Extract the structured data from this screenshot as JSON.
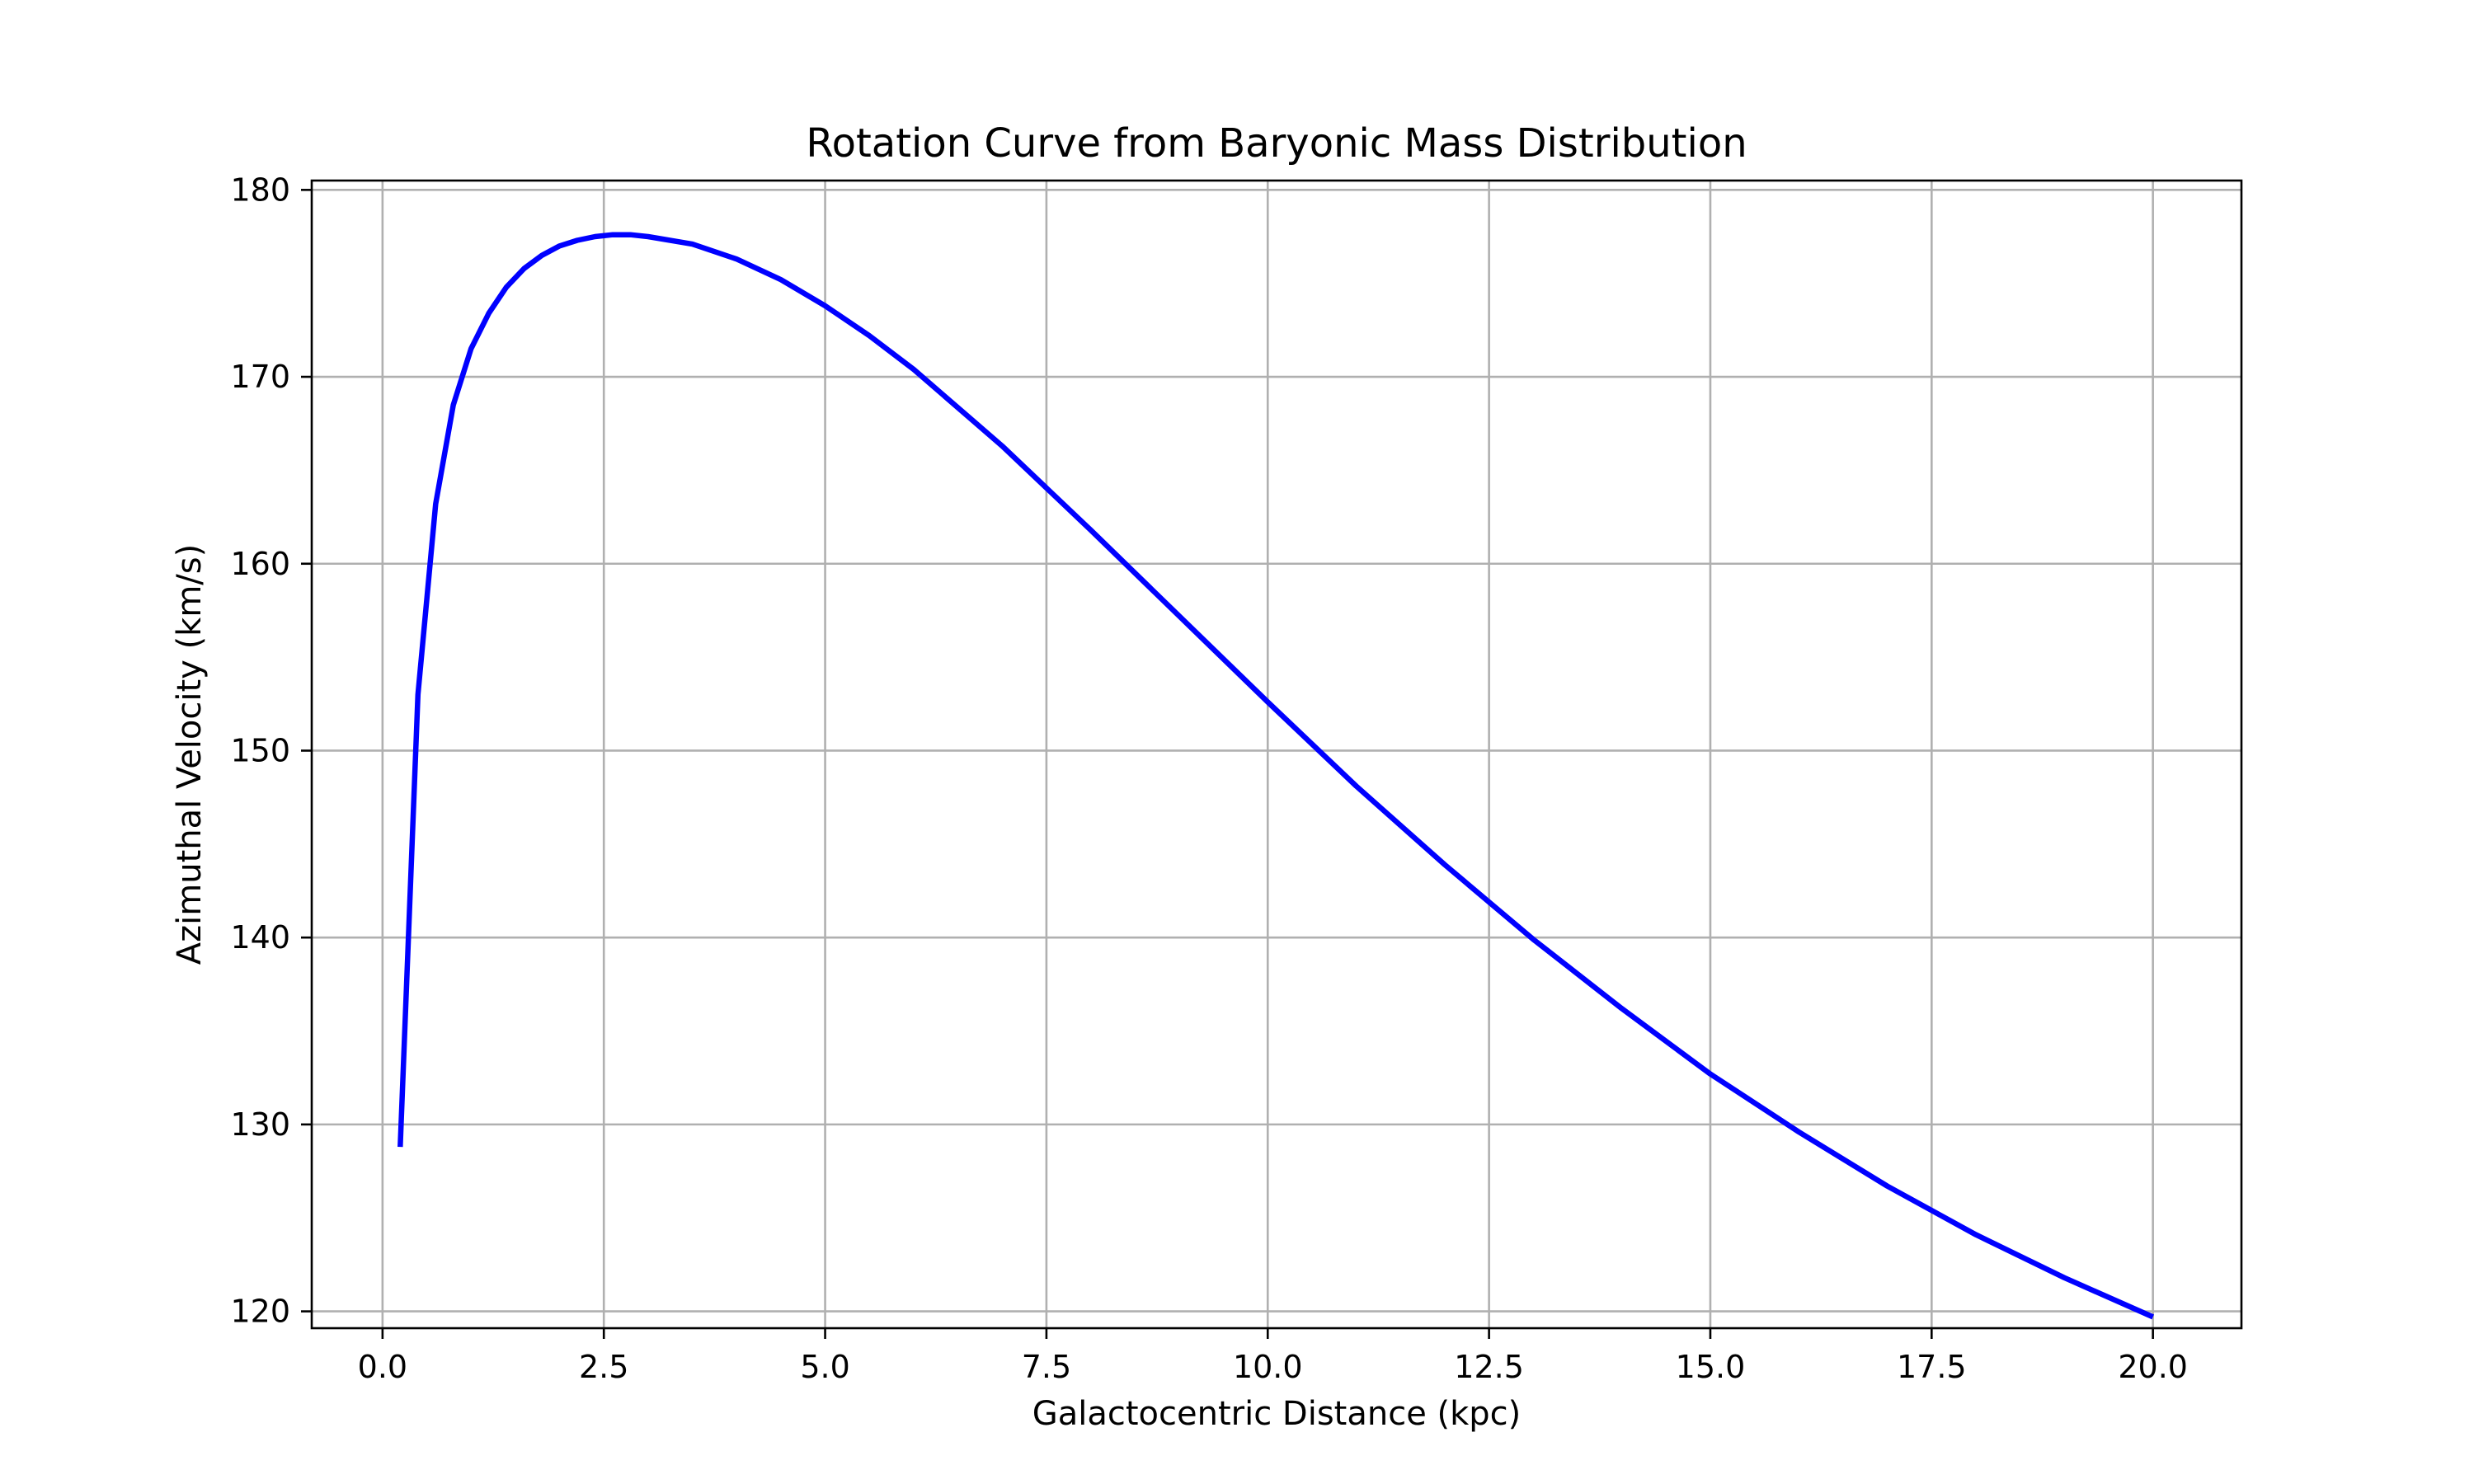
{
  "chart_data": {
    "type": "line",
    "title": "Rotation Curve from Baryonic Mass Distribution",
    "xlabel": "Galactocentric Distance (kpc)",
    "ylabel": "Azimuthal Velocity (km/s)",
    "xlim": [
      -0.8,
      21.0
    ],
    "ylim": [
      119.1,
      180.5
    ],
    "xticks": [
      0.0,
      2.5,
      5.0,
      7.5,
      10.0,
      12.5,
      15.0,
      17.5,
      20.0
    ],
    "xtick_labels": [
      "0.0",
      "2.5",
      "5.0",
      "7.5",
      "10.0",
      "12.5",
      "15.0",
      "17.5",
      "20.0"
    ],
    "yticks": [
      120,
      130,
      140,
      150,
      160,
      170,
      180
    ],
    "ytick_labels": [
      "120",
      "130",
      "140",
      "150",
      "160",
      "170",
      "180"
    ],
    "grid": true,
    "legend": "none",
    "series": [
      {
        "color": "#0000ff",
        "x": [
          0.2,
          0.4,
          0.6,
          0.8,
          1.0,
          1.2,
          1.4,
          1.6,
          1.8,
          2.0,
          2.2,
          2.4,
          2.6,
          2.8,
          3.0,
          3.5,
          4.0,
          4.5,
          5.0,
          5.5,
          6.0,
          7.0,
          8.0,
          9.0,
          10.0,
          11.0,
          12.0,
          13.0,
          14.0,
          15.0,
          16.0,
          17.0,
          18.0,
          19.0,
          20.0
        ],
        "y": [
          128.8,
          153.0,
          163.2,
          168.5,
          171.5,
          173.4,
          174.8,
          175.8,
          176.5,
          177.0,
          177.3,
          177.5,
          177.6,
          177.6,
          177.5,
          177.1,
          176.3,
          175.2,
          173.8,
          172.2,
          170.4,
          166.3,
          161.8,
          157.2,
          152.6,
          148.1,
          143.9,
          139.9,
          136.2,
          132.7,
          129.6,
          126.7,
          124.1,
          121.8,
          119.7
        ]
      }
    ]
  }
}
